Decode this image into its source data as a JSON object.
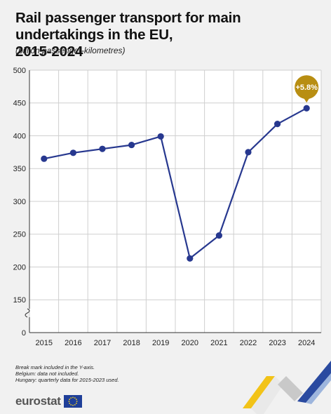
{
  "title_lines": [
    "Rail passenger transport for main undertakings in the EU,",
    "2015-2024"
  ],
  "subtitle": "(billion passenger-kilometres)",
  "notes": [
    "Break mark included in the Y-axis.",
    "Belgium: data not included.",
    "Hungary: quarterly data for 2015-2023 used."
  ],
  "logo": {
    "text": "eurostat",
    "icon": "eu-flag-icon"
  },
  "colors": {
    "line": "#27388f",
    "badge": "#b88e12",
    "grid": "#cfcfcf",
    "background": "#f1f1f1",
    "chart_background": "#ffffff"
  },
  "chart_data": {
    "type": "line",
    "title": "Rail passenger transport for main undertakings in the EU, 2015-2024",
    "ylabel": "billion passenger-kilometres",
    "xlabel": "",
    "categories": [
      "2015",
      "2016",
      "2017",
      "2018",
      "2019",
      "2020",
      "2021",
      "2022",
      "2023",
      "2024"
    ],
    "series": [
      {
        "values": [
          365,
          374,
          380,
          386,
          399,
          213,
          248,
          375,
          418,
          442
        ]
      }
    ],
    "y_ticks": [
      "500",
      "450",
      "400",
      "350",
      "300",
      "250",
      "200",
      "150",
      "0"
    ],
    "ylim": [
      0,
      500
    ],
    "y_axis_break": true,
    "grid": true,
    "annotation": {
      "category": "2024",
      "text": "+5.8%"
    }
  }
}
